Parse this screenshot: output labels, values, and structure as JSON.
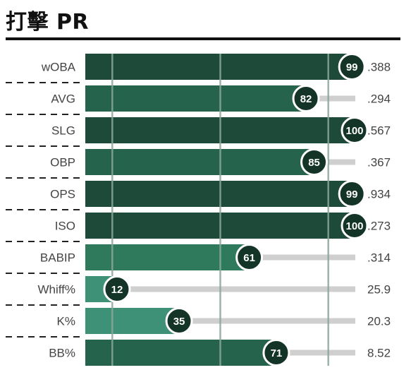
{
  "title": "打擊 PR",
  "chart_data": {
    "type": "bar",
    "orientation": "horizontal",
    "title": "打擊 PR",
    "xlim": [
      0,
      100
    ],
    "categories": [
      "wOBA",
      "AVG",
      "SLG",
      "OBP",
      "OPS",
      "ISO",
      "BABIP",
      "Whiff%",
      "K%",
      "BB%"
    ],
    "values": [
      99,
      82,
      100,
      85,
      99,
      100,
      61,
      12,
      35,
      71
    ],
    "stat_values": [
      ".388",
      ".294",
      ".567",
      ".367",
      ".934",
      ".273",
      ".314",
      "25.9",
      "20.3",
      "8.52"
    ],
    "reference_lines": [
      10,
      50,
      90
    ],
    "colors": {
      "high": "#1e4a3a",
      "mid_high": "#25634c",
      "mid": "#2f7a5d",
      "low": "#3e9177",
      "track": "#cfcfcf",
      "badge": "#143428",
      "reference_line": "#8aa89a"
    }
  }
}
